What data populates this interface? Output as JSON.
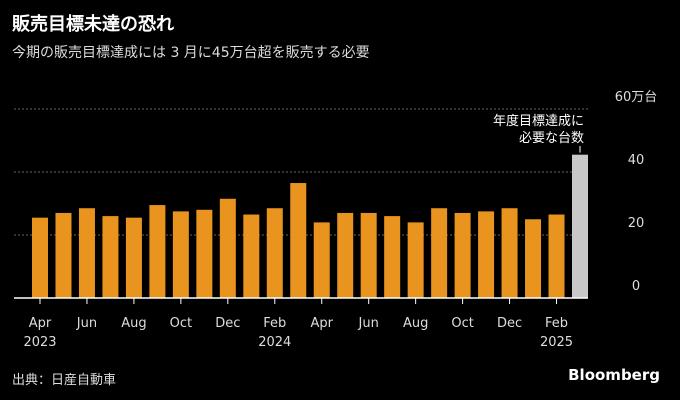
{
  "header": {
    "title": "販売目標未達の恐れ",
    "subtitle": "今期の販売目標達成には 3 月に45万台超を販売する必要"
  },
  "footer": {
    "source": "出典：日産自動車",
    "brand": "Bloomberg"
  },
  "colors": {
    "background": "#000000",
    "bar": "#E8941E",
    "highlight_bar": "#C8C8C8",
    "grid": "#666666",
    "axis": "#FFFFFF",
    "text": "#FFFFFF"
  },
  "chart_data": {
    "type": "bar",
    "title": "販売目標未達の恐れ",
    "subtitle": "今期の販売目標達成には 3 月に45万台超を販売する必要",
    "ylabel": "",
    "ylim": [
      0,
      60
    ],
    "y_ticks": [
      0,
      20,
      40,
      60
    ],
    "y_tick_labels": [
      "0",
      "20",
      "40",
      "60万台"
    ],
    "grid": true,
    "categories": [
      "2023-04",
      "2023-05",
      "2023-06",
      "2023-07",
      "2023-08",
      "2023-09",
      "2023-10",
      "2023-11",
      "2023-12",
      "2024-01",
      "2024-02",
      "2024-03",
      "2024-04",
      "2024-05",
      "2024-06",
      "2024-07",
      "2024-08",
      "2024-09",
      "2024-10",
      "2024-11",
      "2024-12",
      "2025-01",
      "2025-02",
      "2025-03"
    ],
    "values": [
      25.5,
      27,
      28.5,
      26,
      25.5,
      29.5,
      27.5,
      28,
      31.5,
      26.5,
      28.5,
      36.5,
      24,
      27,
      27,
      26,
      24,
      28.5,
      27,
      27.5,
      28.5,
      25,
      26.5,
      45.5
    ],
    "highlight_index": 23,
    "x_tick_labels": [
      {
        "index": 0,
        "label": "Apr",
        "year": "2023"
      },
      {
        "index": 2,
        "label": "Jun",
        "year": ""
      },
      {
        "index": 4,
        "label": "Aug",
        "year": ""
      },
      {
        "index": 6,
        "label": "Oct",
        "year": ""
      },
      {
        "index": 8,
        "label": "Dec",
        "year": ""
      },
      {
        "index": 10,
        "label": "Feb",
        "year": "2024"
      },
      {
        "index": 12,
        "label": "Apr",
        "year": ""
      },
      {
        "index": 14,
        "label": "Jun",
        "year": ""
      },
      {
        "index": 16,
        "label": "Aug",
        "year": ""
      },
      {
        "index": 18,
        "label": "Oct",
        "year": ""
      },
      {
        "index": 20,
        "label": "Dec",
        "year": ""
      },
      {
        "index": 22,
        "label": "Feb",
        "year": "2025"
      }
    ],
    "annotation": {
      "index": 23,
      "lines": [
        "年度目標達成に",
        "必要な台数"
      ]
    }
  }
}
